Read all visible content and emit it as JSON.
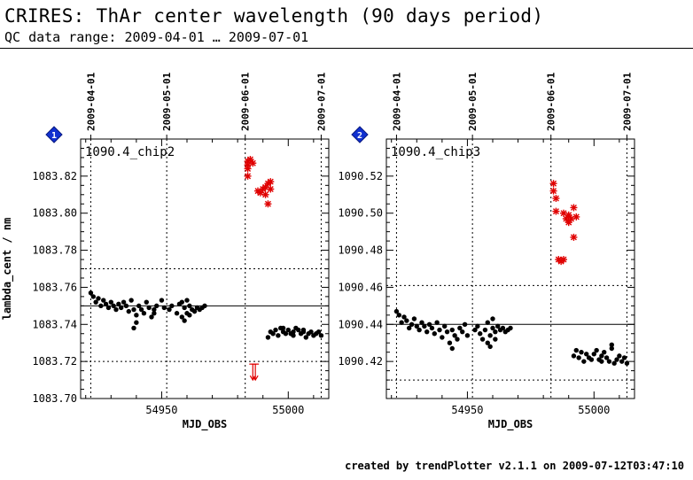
{
  "header": {
    "title": "CRIRES: ThAr center wavelength (90 days period)",
    "subtitle": "QC data range: 2009-04-01 … 2009-07-01"
  },
  "footer": {
    "text": "created by trendPlotter v2.1.1 on 2009-07-12T03:47:10"
  },
  "chart_data": [
    {
      "type": "scatter",
      "panel_number": "1",
      "label": "1090.4_chip2",
      "xlabel": "MJD_OBS",
      "ylabel": "lambda_cent / nm",
      "xlim": [
        54918,
        55016
      ],
      "ylim": [
        1083.7,
        1083.84
      ],
      "xticks": [
        54950,
        55000
      ],
      "yticks": [
        1083.7,
        1083.72,
        1083.74,
        1083.76,
        1083.78,
        1083.8,
        1083.82
      ],
      "ytick_labels": [
        "1083.70",
        "1083.72",
        "1083.74",
        "1083.76",
        "1083.78",
        "1083.80",
        "1083.82"
      ],
      "date_ticks": [
        {
          "label": "2009-04-01",
          "mjd": 54922
        },
        {
          "label": "2009-05-01",
          "mjd": 54952
        },
        {
          "label": "2009-06-01",
          "mjd": 54983
        },
        {
          "label": "2009-07-01",
          "mjd": 55013
        }
      ],
      "reference_line": 1083.75,
      "threshold_lines": [
        1083.77,
        1083.72
      ],
      "series": [
        {
          "role": "in-range",
          "color": "#000000",
          "points": [
            [
              54922,
              1083.757
            ],
            [
              54923,
              1083.755
            ],
            [
              54924,
              1083.752
            ],
            [
              54925,
              1083.754
            ],
            [
              54926,
              1083.75
            ],
            [
              54927,
              1083.753
            ],
            [
              54928,
              1083.751
            ],
            [
              54929,
              1083.749
            ],
            [
              54930,
              1083.752
            ],
            [
              54931,
              1083.75
            ],
            [
              54932,
              1083.748
            ],
            [
              54933,
              1083.751
            ],
            [
              54934,
              1083.749
            ],
            [
              54935,
              1083.752
            ],
            [
              54936,
              1083.75
            ],
            [
              54937,
              1083.747
            ],
            [
              54938,
              1083.753
            ],
            [
              54939,
              1083.748
            ],
            [
              54940,
              1083.745
            ],
            [
              54941,
              1083.75
            ],
            [
              54942,
              1083.748
            ],
            [
              54943,
              1083.746
            ],
            [
              54944,
              1083.752
            ],
            [
              54945,
              1083.749
            ],
            [
              54946,
              1083.744
            ],
            [
              54947,
              1083.748
            ],
            [
              54948,
              1083.75
            ],
            [
              54950,
              1083.753
            ],
            [
              54951,
              1083.749
            ],
            [
              54953,
              1083.748
            ],
            [
              54954,
              1083.75
            ],
            [
              54956,
              1083.746
            ],
            [
              54957,
              1083.751
            ],
            [
              54958,
              1083.744
            ],
            [
              54958,
              1083.752
            ],
            [
              54959,
              1083.749
            ],
            [
              54959,
              1083.742
            ],
            [
              54960,
              1083.746
            ],
            [
              54960,
              1083.753
            ],
            [
              54961,
              1083.75
            ],
            [
              54961,
              1083.745
            ],
            [
              54962,
              1083.748
            ],
            [
              54963,
              1083.747
            ],
            [
              54964,
              1083.749
            ],
            [
              54965,
              1083.748
            ],
            [
              54966,
              1083.749
            ],
            [
              54967,
              1083.75
            ],
            [
              54940,
              1083.741
            ],
            [
              54939,
              1083.738
            ],
            [
              54947,
              1083.746
            ],
            [
              54992,
              1083.733
            ],
            [
              54993,
              1083.736
            ],
            [
              54994,
              1083.735
            ],
            [
              54995,
              1083.737
            ],
            [
              54996,
              1083.734
            ],
            [
              54997,
              1083.738
            ],
            [
              54998,
              1083.736
            ],
            [
              54999,
              1083.735
            ],
            [
              55000,
              1083.737
            ],
            [
              55001,
              1083.735
            ],
            [
              55002,
              1083.736
            ],
            [
              55003,
              1083.738
            ],
            [
              55004,
              1083.737
            ],
            [
              55005,
              1083.735
            ],
            [
              55006,
              1083.736
            ],
            [
              55007,
              1083.733
            ],
            [
              55008,
              1083.735
            ],
            [
              55009,
              1083.736
            ],
            [
              55010,
              1083.734
            ],
            [
              55011,
              1083.735
            ],
            [
              55012,
              1083.736
            ],
            [
              55013,
              1083.734
            ],
            [
              54998,
              1083.738
            ],
            [
              55002,
              1083.734
            ],
            [
              55006,
              1083.737
            ]
          ]
        },
        {
          "role": "out-of-range",
          "color": "#e00000",
          "points": [
            [
              54984,
              1083.828
            ],
            [
              54984,
              1083.826
            ],
            [
              54984,
              1083.824
            ],
            [
              54984,
              1083.82
            ],
            [
              54985,
              1083.829
            ],
            [
              54986,
              1083.827
            ],
            [
              54988,
              1083.812
            ],
            [
              54989,
              1083.811
            ],
            [
              54990,
              1083.813
            ],
            [
              54991,
              1083.814
            ],
            [
              54991,
              1083.81
            ],
            [
              54992,
              1083.816
            ],
            [
              54992,
              1083.805
            ],
            [
              54993,
              1083.817
            ],
            [
              54993,
              1083.813
            ]
          ]
        }
      ],
      "clipped_markers": [
        {
          "x": 54986,
          "direction": "down",
          "color": "#e00000"
        },
        {
          "x": 54987,
          "direction": "down",
          "color": "#e00000"
        }
      ]
    },
    {
      "type": "scatter",
      "panel_number": "2",
      "label": "1090.4_chip3",
      "xlabel": "MJD_OBS",
      "ylabel": "",
      "xlim": [
        54918,
        55016
      ],
      "ylim": [
        1090.4,
        1090.54
      ],
      "xticks": [
        54950,
        55000
      ],
      "yticks": [
        1090.4,
        1090.42,
        1090.44,
        1090.46,
        1090.48,
        1090.5,
        1090.52
      ],
      "ytick_labels": [
        "",
        "1090.42",
        "1090.44",
        "1090.46",
        "1090.48",
        "1090.50",
        "1090.52"
      ],
      "date_ticks": [
        {
          "label": "2009-04-01",
          "mjd": 54922
        },
        {
          "label": "2009-05-01",
          "mjd": 54952
        },
        {
          "label": "2009-06-01",
          "mjd": 54983
        },
        {
          "label": "2009-07-01",
          "mjd": 55013
        }
      ],
      "reference_line": 1090.44,
      "threshold_lines": [
        1090.461,
        1090.41
      ],
      "series": [
        {
          "role": "in-range",
          "color": "#000000",
          "points": [
            [
              54922,
              1090.447
            ],
            [
              54923,
              1090.445
            ],
            [
              54924,
              1090.441
            ],
            [
              54925,
              1090.444
            ],
            [
              54926,
              1090.442
            ],
            [
              54927,
              1090.438
            ],
            [
              54928,
              1090.44
            ],
            [
              54929,
              1090.443
            ],
            [
              54930,
              1090.439
            ],
            [
              54931,
              1090.437
            ],
            [
              54932,
              1090.441
            ],
            [
              54933,
              1090.439
            ],
            [
              54934,
              1090.436
            ],
            [
              54935,
              1090.44
            ],
            [
              54936,
              1090.438
            ],
            [
              54937,
              1090.435
            ],
            [
              54938,
              1090.441
            ],
            [
              54939,
              1090.437
            ],
            [
              54940,
              1090.433
            ],
            [
              54941,
              1090.439
            ],
            [
              54942,
              1090.436
            ],
            [
              54943,
              1090.43
            ],
            [
              54944,
              1090.437
            ],
            [
              54945,
              1090.434
            ],
            [
              54946,
              1090.432
            ],
            [
              54947,
              1090.438
            ],
            [
              54948,
              1090.436
            ],
            [
              54949,
              1090.44
            ],
            [
              54950,
              1090.434
            ],
            [
              54953,
              1090.437
            ],
            [
              54954,
              1090.439
            ],
            [
              54955,
              1090.435
            ],
            [
              54956,
              1090.432
            ],
            [
              54957,
              1090.437
            ],
            [
              54958,
              1090.43
            ],
            [
              54958,
              1090.441
            ],
            [
              54959,
              1090.434
            ],
            [
              54959,
              1090.428
            ],
            [
              54960,
              1090.438
            ],
            [
              54960,
              1090.443
            ],
            [
              54961,
              1090.436
            ],
            [
              54961,
              1090.432
            ],
            [
              54962,
              1090.439
            ],
            [
              54963,
              1090.437
            ],
            [
              54964,
              1090.438
            ],
            [
              54965,
              1090.436
            ],
            [
              54966,
              1090.437
            ],
            [
              54967,
              1090.438
            ],
            [
              54944,
              1090.427
            ],
            [
              54992,
              1090.423
            ],
            [
              54993,
              1090.426
            ],
            [
              54994,
              1090.422
            ],
            [
              54995,
              1090.425
            ],
            [
              54996,
              1090.42
            ],
            [
              54997,
              1090.424
            ],
            [
              54998,
              1090.422
            ],
            [
              54999,
              1090.421
            ],
            [
              55000,
              1090.424
            ],
            [
              55001,
              1090.426
            ],
            [
              55002,
              1090.421
            ],
            [
              55003,
              1090.423
            ],
            [
              55004,
              1090.425
            ],
            [
              55005,
              1090.422
            ],
            [
              55006,
              1090.42
            ],
            [
              55007,
              1090.427
            ],
            [
              55008,
              1090.419
            ],
            [
              55009,
              1090.421
            ],
            [
              55010,
              1090.423
            ],
            [
              55011,
              1090.42
            ],
            [
              55012,
              1090.422
            ],
            [
              55013,
              1090.419
            ],
            [
              55007,
              1090.429
            ],
            [
              55003,
              1090.42
            ]
          ]
        },
        {
          "role": "out-of-range",
          "color": "#e00000",
          "points": [
            [
              54984,
              1090.516
            ],
            [
              54984,
              1090.512
            ],
            [
              54985,
              1090.501
            ],
            [
              54985,
              1090.508
            ],
            [
              54986,
              1090.475
            ],
            [
              54987,
              1090.474
            ],
            [
              54988,
              1090.475
            ],
            [
              54988,
              1090.5
            ],
            [
              54989,
              1090.497
            ],
            [
              54990,
              1090.495
            ],
            [
              54990,
              1090.499
            ],
            [
              54991,
              1090.497
            ],
            [
              54992,
              1090.503
            ],
            [
              54992,
              1090.487
            ],
            [
              54993,
              1090.498
            ]
          ]
        }
      ],
      "clipped_markers": []
    }
  ]
}
